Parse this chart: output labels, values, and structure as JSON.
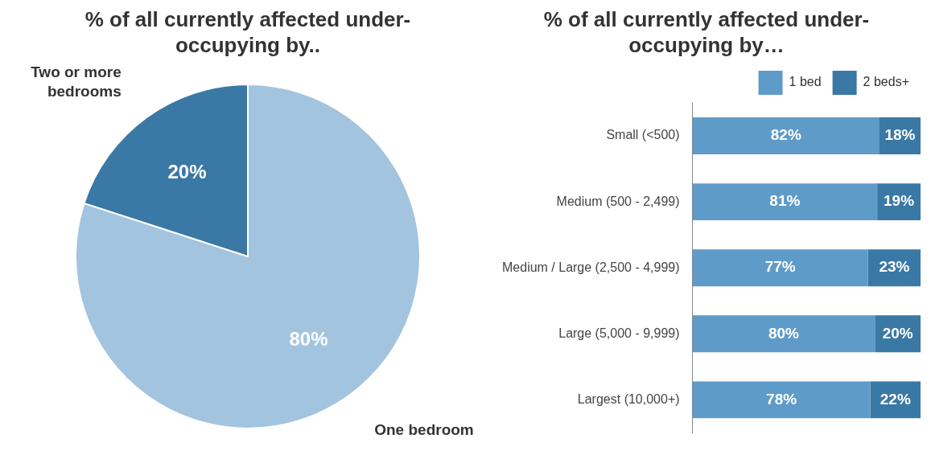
{
  "chart_data": [
    {
      "type": "pie",
      "title": "% of all currently affected under-occupying by..",
      "categories": [
        "One bedroom",
        "Two or more bedrooms"
      ],
      "values": [
        80,
        20
      ],
      "colors": [
        "#a3c4df",
        "#3a78a5"
      ],
      "value_labels": [
        "80%",
        "20%"
      ]
    },
    {
      "type": "bar",
      "title": "% of all currently affected under-occupying by…",
      "orientation": "horizontal",
      "stacked": true,
      "categories": [
        "Small (<500)",
        "Medium (500 - 2,499)",
        "Medium / Large (2,500 - 4,999)",
        "Large (5,000 - 9,999)",
        "Largest (10,000+)"
      ],
      "legend": "top",
      "tick_labels": "y",
      "series": [
        {
          "name": "1 bed",
          "color": "#5f9bc8",
          "values": [
            82,
            81,
            77,
            80,
            78
          ],
          "value_labels": [
            "82%",
            "81%",
            "77%",
            "80%",
            "78%"
          ]
        },
        {
          "name": "2 beds+",
          "color": "#3a78a5",
          "values": [
            18,
            19,
            23,
            20,
            22
          ],
          "value_labels": [
            "18%",
            "19%",
            "23%",
            "20%",
            "22%"
          ]
        }
      ]
    }
  ]
}
